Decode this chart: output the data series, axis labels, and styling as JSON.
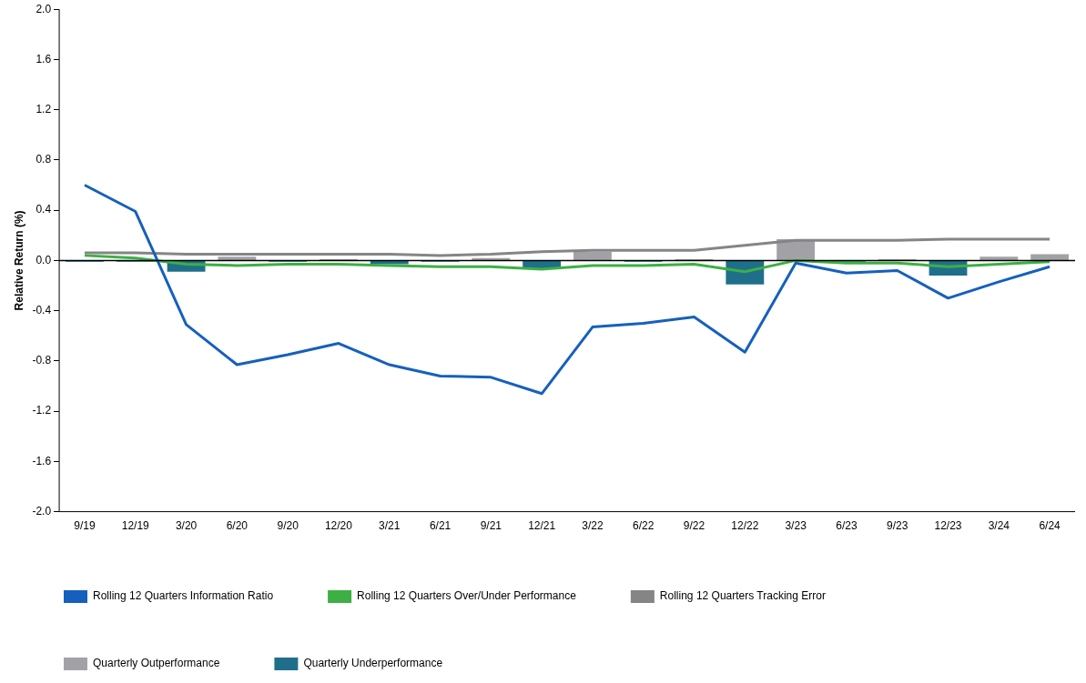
{
  "chart_data": {
    "type": "bar",
    "ylabel": "Relative Return (%)",
    "categories": [
      "9/19",
      "12/19",
      "3/20",
      "6/20",
      "9/20",
      "12/20",
      "3/21",
      "6/21",
      "9/21",
      "12/21",
      "3/22",
      "6/22",
      "9/22",
      "12/22",
      "3/23",
      "6/23",
      "9/23",
      "12/23",
      "3/24",
      "6/24"
    ],
    "series": [
      {
        "type": "line",
        "name": "Rolling 12 Quarters Information Ratio",
        "color": "#1560bd",
        "values": [
          0.6,
          0.39,
          -0.51,
          -0.83,
          -0.75,
          -0.66,
          -0.83,
          -0.92,
          -0.93,
          -1.06,
          -0.53,
          -0.5,
          -0.45,
          -0.73,
          -0.02,
          -0.1,
          -0.08,
          -0.3,
          -0.17,
          -0.05
        ]
      },
      {
        "type": "line",
        "name": "Rolling 12 Quarters Over/Under Performance",
        "color": "#3cb043",
        "values": [
          0.04,
          0.02,
          -0.03,
          -0.04,
          -0.03,
          -0.03,
          -0.04,
          -0.05,
          -0.05,
          -0.07,
          -0.04,
          -0.04,
          -0.03,
          -0.09,
          0.0,
          -0.02,
          -0.02,
          -0.05,
          -0.03,
          -0.01
        ]
      },
      {
        "type": "line",
        "name": "Rolling 12 Quarters Tracking Error",
        "color": "#858585",
        "values": [
          0.06,
          0.06,
          0.05,
          0.05,
          0.05,
          0.05,
          0.05,
          0.04,
          0.05,
          0.07,
          0.08,
          0.08,
          0.08,
          0.12,
          0.16,
          0.16,
          0.16,
          0.17,
          0.17,
          0.17
        ]
      },
      {
        "type": "bar",
        "name": "Quarterly Outperformance",
        "color": "#a2a2a6",
        "values": [
          null,
          null,
          null,
          0.03,
          null,
          0.01,
          null,
          null,
          0.02,
          null,
          0.07,
          null,
          0.01,
          null,
          0.17,
          null,
          0.01,
          null,
          0.03,
          0.05
        ]
      },
      {
        "type": "bar",
        "name": "Quarterly Underperformance",
        "color": "#1f6f8b",
        "values": [
          -0.01,
          -0.01,
          -0.09,
          null,
          -0.01,
          null,
          -0.03,
          -0.01,
          null,
          -0.07,
          null,
          -0.01,
          null,
          -0.19,
          null,
          -0.01,
          null,
          -0.12,
          null,
          null
        ]
      }
    ],
    "ylim": [
      -2,
      2
    ],
    "yticks": [
      {
        "value": -2,
        "label": "-2.0"
      },
      {
        "value": -1.6,
        "label": "-1.6"
      },
      {
        "value": -1.2,
        "label": "-1.2"
      },
      {
        "value": -0.8,
        "label": "-0.8"
      },
      {
        "value": -0.4,
        "label": "-0.4"
      },
      {
        "value": 0,
        "label": "0.0"
      },
      {
        "value": 0.4,
        "label": "0.4"
      },
      {
        "value": 0.8,
        "label": "0.8"
      },
      {
        "value": 1.2,
        "label": "1.2"
      },
      {
        "value": 1.6,
        "label": "1.6"
      },
      {
        "value": 2,
        "label": "2.0"
      }
    ],
    "ref_lines": [
      {
        "axis": "y",
        "value": 0,
        "color": "#000000"
      }
    ],
    "grid": false,
    "legend": "bottom",
    "marker": "none"
  }
}
